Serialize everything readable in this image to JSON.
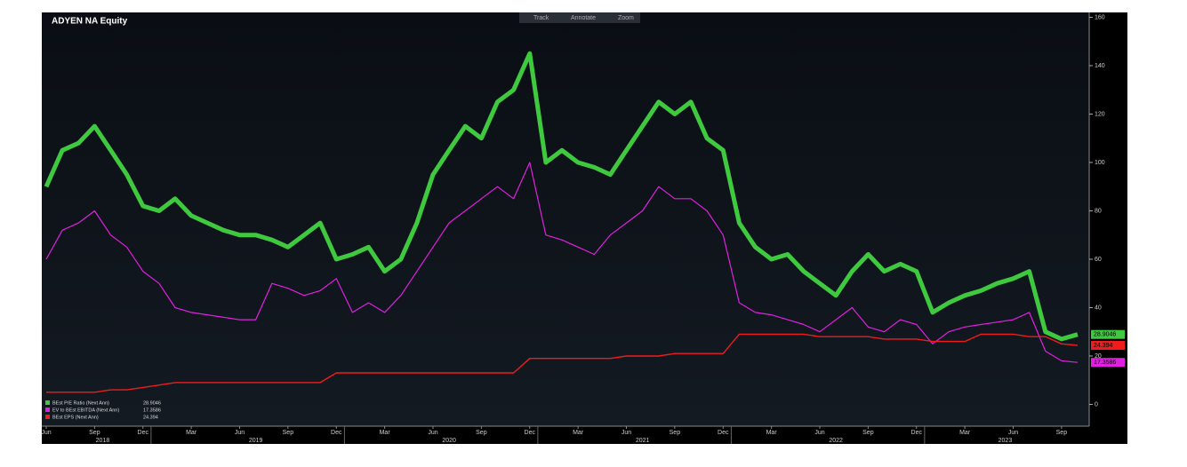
{
  "toolbar": [
    "Track",
    "Annotate",
    "Zoom"
  ],
  "chart_data": {
    "type": "line",
    "title": "ADYEN NA Equity",
    "x": [
      "2018-06",
      "2018-07",
      "2018-08",
      "2018-09",
      "2018-10",
      "2018-11",
      "2018-12",
      "2019-01",
      "2019-02",
      "2019-03",
      "2019-04",
      "2019-05",
      "2019-06",
      "2019-07",
      "2019-08",
      "2019-09",
      "2019-10",
      "2019-11",
      "2019-12",
      "2020-01",
      "2020-02",
      "2020-03",
      "2020-04",
      "2020-05",
      "2020-06",
      "2020-07",
      "2020-08",
      "2020-09",
      "2020-10",
      "2020-11",
      "2020-12",
      "2021-01",
      "2021-02",
      "2021-03",
      "2021-04",
      "2021-05",
      "2021-06",
      "2021-07",
      "2021-08",
      "2021-09",
      "2021-10",
      "2021-11",
      "2021-12",
      "2022-01",
      "2022-02",
      "2022-03",
      "2022-04",
      "2022-05",
      "2022-06",
      "2022-07",
      "2022-08",
      "2022-09",
      "2022-10",
      "2022-11",
      "2022-12",
      "2023-01",
      "2023-02",
      "2023-03",
      "2023-04",
      "2023-05",
      "2023-06",
      "2023-07",
      "2023-08",
      "2023-09",
      "2023-10"
    ],
    "series": [
      {
        "name": "BEst P/E Ratio (Next Ann)",
        "color": "#3ec93e",
        "values": [
          90,
          105,
          108,
          115,
          105,
          95,
          82,
          80,
          85,
          78,
          75,
          72,
          70,
          70,
          68,
          65,
          70,
          75,
          60,
          62,
          65,
          55,
          60,
          75,
          95,
          105,
          115,
          110,
          125,
          130,
          145,
          100,
          105,
          100,
          98,
          95,
          105,
          115,
          125,
          120,
          125,
          110,
          105,
          75,
          65,
          60,
          62,
          55,
          50,
          45,
          55,
          62,
          55,
          58,
          55,
          38,
          42,
          45,
          47,
          50,
          52,
          55,
          30,
          27,
          28.9046
        ]
      },
      {
        "name": "EV to BEst EBITDA (Next Ann)",
        "color": "#e020e0",
        "values": [
          60,
          72,
          75,
          80,
          70,
          65,
          55,
          50,
          40,
          38,
          37,
          36,
          35,
          35,
          50,
          48,
          45,
          47,
          52,
          38,
          42,
          38,
          45,
          55,
          65,
          75,
          80,
          85,
          90,
          85,
          100,
          70,
          68,
          65,
          62,
          70,
          75,
          80,
          90,
          85,
          85,
          80,
          70,
          42,
          38,
          37,
          35,
          33,
          30,
          35,
          40,
          32,
          30,
          35,
          33,
          25,
          30,
          32,
          33,
          34,
          35,
          38,
          22,
          18,
          17.3586
        ]
      },
      {
        "name": "BEst EPS (Next Ann)",
        "color": "#ee1c1c",
        "values": [
          5,
          5,
          5,
          5,
          6,
          6,
          7,
          8,
          9,
          9,
          9,
          9,
          9,
          9,
          9,
          9,
          9,
          9,
          13,
          13,
          13,
          13,
          13,
          13,
          13,
          13,
          13,
          13,
          13,
          13,
          19,
          19,
          19,
          19,
          19,
          19,
          20,
          20,
          20,
          21,
          21,
          21,
          21,
          29,
          29,
          29,
          29,
          29,
          28,
          28,
          28,
          28,
          27,
          27,
          27,
          26,
          26,
          26,
          29,
          29,
          29,
          28,
          28,
          25,
          24.394
        ]
      }
    ],
    "xlim": [
      "2018-06",
      "2023-10"
    ],
    "xticks": [
      {
        "value": "2018-06",
        "label": "Jun"
      },
      {
        "value": "2018-09",
        "label": "Sep"
      },
      {
        "value": "2018-12",
        "label": "Dec"
      },
      {
        "value": "2019-03",
        "label": "Mar"
      },
      {
        "value": "2019-06",
        "label": "Jun"
      },
      {
        "value": "2019-09",
        "label": "Sep"
      },
      {
        "value": "2019-12",
        "label": "Dec"
      },
      {
        "value": "2020-03",
        "label": "Mar"
      },
      {
        "value": "2020-06",
        "label": "Jun"
      },
      {
        "value": "2020-09",
        "label": "Sep"
      },
      {
        "value": "2020-12",
        "label": "Dec"
      },
      {
        "value": "2021-03",
        "label": "Mar"
      },
      {
        "value": "2021-06",
        "label": "Jun"
      },
      {
        "value": "2021-09",
        "label": "Sep"
      },
      {
        "value": "2021-12",
        "label": "Dec"
      },
      {
        "value": "2022-03",
        "label": "Mar"
      },
      {
        "value": "2022-06",
        "label": "Jun"
      },
      {
        "value": "2022-09",
        "label": "Sep"
      },
      {
        "value": "2022-12",
        "label": "Dec"
      },
      {
        "value": "2023-03",
        "label": "Mar"
      },
      {
        "value": "2023-06",
        "label": "Jun"
      },
      {
        "value": "2023-09",
        "label": "Sep"
      }
    ],
    "years": [
      "2018",
      "2019",
      "2020",
      "2021",
      "2022",
      "2023"
    ],
    "ylim": [
      -9,
      162
    ],
    "yticks": [
      0,
      20,
      40,
      60,
      80,
      100,
      120,
      140,
      160
    ],
    "y_axis_side": "right",
    "legend": "lower left"
  }
}
